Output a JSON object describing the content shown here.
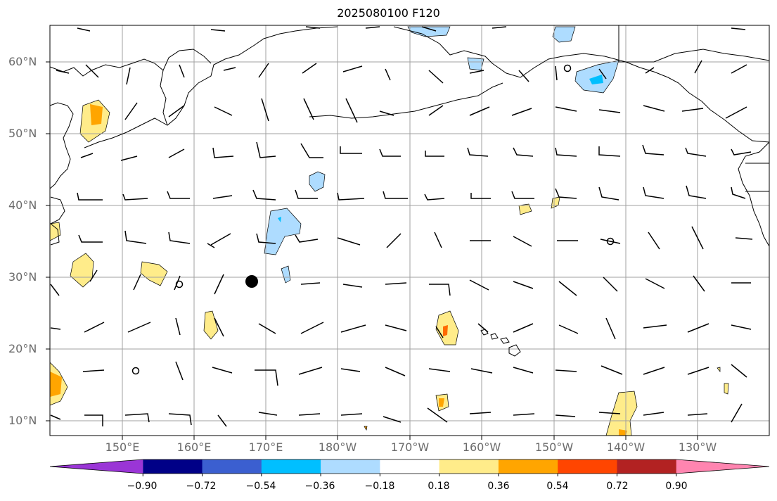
{
  "title": "2025080100 F120",
  "lat_labels": [
    "60°N",
    "50°N",
    "40°N",
    "30°N",
    "20°N",
    "10°N"
  ],
  "lon_labels": [
    "150°E",
    "160°E",
    "170°E",
    "180°W",
    "170°W",
    "160°W",
    "150°W",
    "140°W",
    "130°W"
  ],
  "colorbar": {
    "ticks": [
      "−0.90",
      "−0.72",
      "−0.54",
      "−0.36",
      "−0.18",
      "0.18",
      "0.36",
      "0.54",
      "0.72",
      "0.90"
    ],
    "colors": [
      "#9a35d6",
      "#000087",
      "#3b5fd0",
      "#00bfff",
      "#aedcff",
      "#ffffff",
      "#ffec8a",
      "#ffa500",
      "#ff4500",
      "#b22222",
      "#ff85b0"
    ]
  }
}
